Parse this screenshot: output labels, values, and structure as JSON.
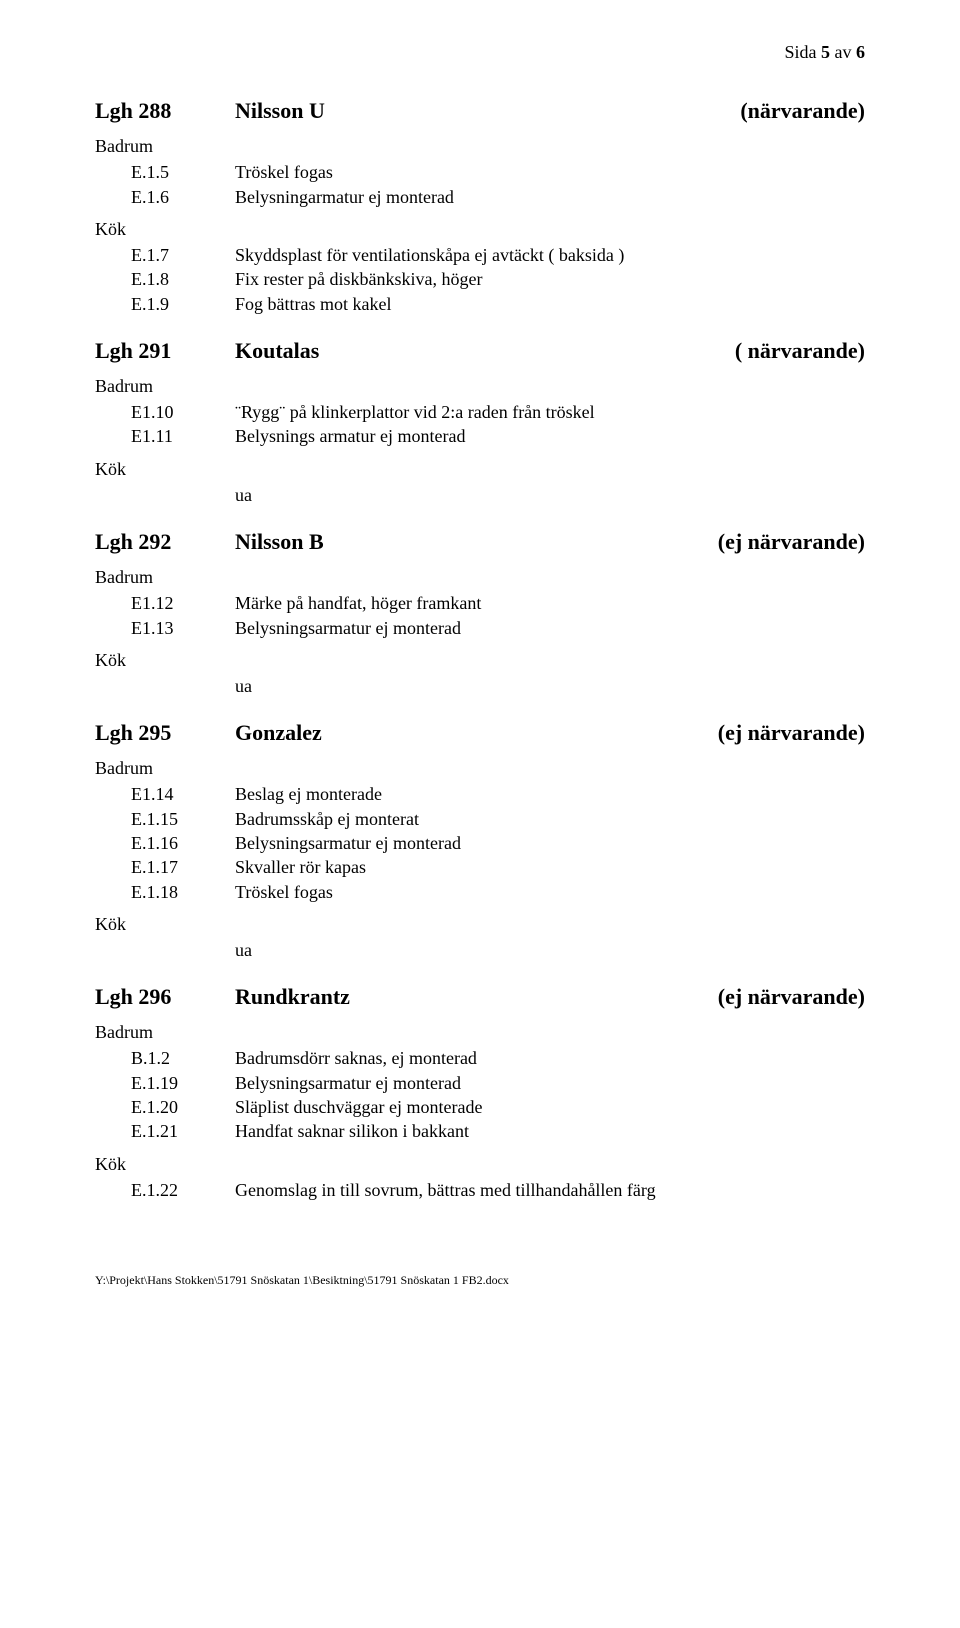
{
  "page_header": {
    "prefix": "Sida ",
    "current": "5",
    "sep": " av ",
    "total": "6"
  },
  "labels": {
    "kok": "Kök",
    "badrum": "Badrum",
    "ua": "ua"
  },
  "units": [
    {
      "key": "u288",
      "unit": "Lgh 288",
      "name": "Nilsson U",
      "presence": "(närvarande)",
      "blocks": [
        {
          "room": "Badrum",
          "items": [
            {
              "code": "E.1.5",
              "desc": "Tröskel fogas"
            },
            {
              "code": "E.1.6",
              "desc": "Belysningarmatur ej monterad"
            }
          ]
        },
        {
          "room": "Kök",
          "items": [
            {
              "code": "E.1.7",
              "desc": "Skyddsplast för ventilationskåpa ej avtäckt ( baksida )"
            },
            {
              "code": "E.1.8",
              "desc": "Fix rester på diskbänkskiva, höger"
            },
            {
              "code": "E.1.9",
              "desc": "Fog bättras mot kakel"
            }
          ]
        }
      ]
    },
    {
      "key": "u291",
      "unit": "Lgh 291",
      "name": "Koutalas",
      "presence": "( närvarande)",
      "blocks": [
        {
          "room": "Badrum",
          "items": [
            {
              "code": "E1.10",
              "desc": "¨Rygg¨ på klinkerplattor vid 2:a raden från tröskel"
            },
            {
              "code": "E1.11",
              "desc": "Belysnings armatur ej monterad"
            }
          ]
        },
        {
          "room": "Kök",
          "ua": true
        }
      ]
    },
    {
      "key": "u292",
      "unit": "Lgh 292",
      "name": "Nilsson B",
      "presence": "(ej  närvarande)",
      "blocks": [
        {
          "room": "Badrum",
          "items": [
            {
              "code": "E1.12",
              "desc": "Märke på handfat, höger framkant"
            },
            {
              "code": "E1.13",
              "desc": "Belysningsarmatur ej monterad"
            }
          ]
        },
        {
          "room": "Kök",
          "ua": true
        }
      ]
    },
    {
      "key": "u295",
      "unit": "Lgh 295",
      "name": "Gonzalez",
      "presence": "(ej närvarande)",
      "blocks": [
        {
          "room": "Badrum",
          "items": [
            {
              "code": "E1.14",
              "desc": "Beslag ej monterade"
            },
            {
              "code": "E.1.15",
              "desc": "Badrumsskåp ej monterat"
            },
            {
              "code": "E.1.16",
              "desc": "Belysningsarmatur ej monterad"
            },
            {
              "code": "E.1.17",
              "desc": "Skvaller rör kapas"
            },
            {
              "code": "E.1.18",
              "desc": "Tröskel fogas"
            }
          ]
        },
        {
          "room": "Kök",
          "ua": true
        }
      ]
    },
    {
      "key": "u296",
      "unit": "Lgh 296",
      "name": "Rundkrantz",
      "presence": "(ej närvarande)",
      "blocks": [
        {
          "room": "Badrum",
          "items": [
            {
              "code": "B.1.2",
              "desc": "Badrumsdörr saknas, ej monterad"
            },
            {
              "code": "E.1.19",
              "desc": "Belysningsarmatur ej monterad"
            },
            {
              "code": "E.1.20",
              "desc": "Släplist duschväggar ej monterade"
            },
            {
              "code": "E.1.21",
              "desc": "Handfat saknar silikon i bakkant"
            }
          ]
        },
        {
          "room": "Kök",
          "items": [
            {
              "code": "E.1.22",
              "desc": "Genomslag in till sovrum, bättras med tillhandahållen färg"
            }
          ]
        }
      ]
    }
  ],
  "footer": "Y:\\Projekt\\Hans Stokken\\51791 Snöskatan 1\\Besiktning\\51791 Snöskatan 1 FB2.docx"
}
